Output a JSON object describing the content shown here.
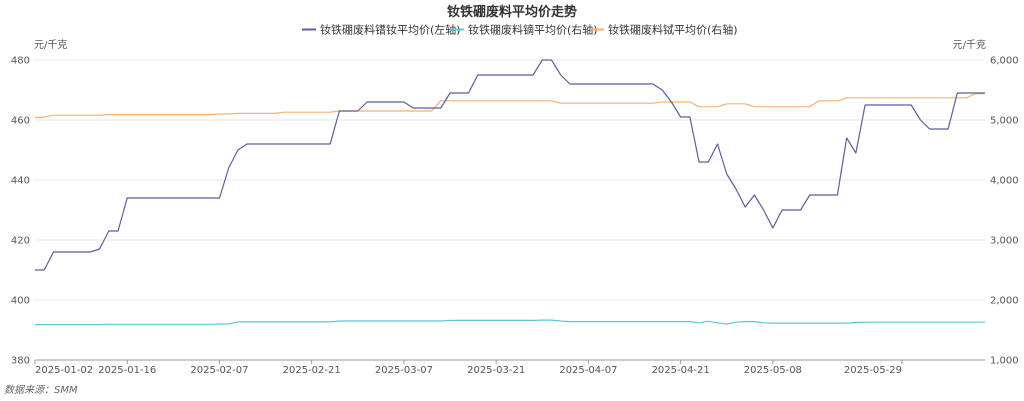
{
  "chart_data": {
    "type": "line",
    "title": "钕铁硼废料平均价走势",
    "source": "数据来源：SMM",
    "left_unit": "元/千克",
    "right_unit": "元/千克",
    "left_axis": {
      "min": 380,
      "max": 480,
      "ticks": [
        "380",
        "400",
        "420",
        "440",
        "460",
        "480"
      ]
    },
    "right_axis": {
      "min": 1000,
      "max": 6000,
      "ticks": [
        "1,000",
        "2,000",
        "3,000",
        "4,000",
        "5,000",
        "6,000"
      ]
    },
    "x_labels": [
      "2025-01-02",
      "2025-01-16",
      "2025-02-07",
      "2025-02-21",
      "2025-03-07",
      "2025-03-21",
      "2025-04-07",
      "2025-04-21",
      "2025-05-08",
      "2025-05-29"
    ],
    "x_label_index": [
      0,
      10,
      20,
      30,
      40,
      50,
      60,
      70,
      80,
      94
    ],
    "grid": true,
    "legend_position": "top-center",
    "series": [
      {
        "name": "钕铁硼废料镨钕平均价(左轴)",
        "axis": "left",
        "color": "#5b5f9b",
        "values": [
          410,
          410,
          416,
          416,
          416,
          416,
          416,
          417,
          423,
          423,
          434,
          434,
          434,
          434,
          434,
          434,
          434,
          434,
          434,
          434,
          434,
          444,
          450,
          452,
          452,
          452,
          452,
          452,
          452,
          452,
          452,
          452,
          452,
          463,
          463,
          463,
          466,
          466,
          466,
          466,
          466,
          464,
          464,
          464,
          464,
          469,
          469,
          469,
          475,
          475,
          475,
          475,
          475,
          475,
          475,
          480,
          480,
          475,
          472,
          472,
          472,
          472,
          472,
          472,
          472,
          472,
          472,
          472,
          470,
          466,
          461,
          461,
          446,
          446,
          452,
          442,
          437,
          431,
          435,
          430,
          424,
          430,
          430,
          430,
          435,
          435,
          435,
          435,
          454,
          449,
          465,
          465,
          465,
          465,
          465,
          465,
          460,
          457,
          457,
          457,
          469,
          469,
          469,
          469
        ]
      },
      {
        "name": "钕铁硼废料镝平均价(右轴)",
        "axis": "right",
        "color": "#5ec6d8",
        "values": [
          1590,
          1590,
          1590,
          1590,
          1590,
          1590,
          1590,
          1590,
          1595,
          1595,
          1595,
          1595,
          1595,
          1595,
          1595,
          1595,
          1595,
          1595,
          1595,
          1595,
          1600,
          1600,
          1635,
          1635,
          1635,
          1635,
          1635,
          1635,
          1635,
          1635,
          1635,
          1635,
          1635,
          1650,
          1650,
          1650,
          1650,
          1650,
          1650,
          1650,
          1650,
          1650,
          1650,
          1650,
          1650,
          1660,
          1660,
          1660,
          1660,
          1660,
          1660,
          1660,
          1660,
          1660,
          1660,
          1665,
          1665,
          1650,
          1640,
          1640,
          1640,
          1640,
          1640,
          1640,
          1640,
          1640,
          1640,
          1640,
          1640,
          1640,
          1640,
          1640,
          1620,
          1645,
          1620,
          1600,
          1630,
          1640,
          1640,
          1620,
          1615,
          1615,
          1615,
          1615,
          1615,
          1615,
          1615,
          1615,
          1615,
          1625,
          1630,
          1630,
          1630,
          1630,
          1630,
          1630,
          1630,
          1630,
          1630,
          1630,
          1630,
          1630,
          1630,
          1630
        ]
      },
      {
        "name": "钕铁硼废料铽平均价(右轴)",
        "axis": "right",
        "color": "#f5b06b",
        "values": [
          5040,
          5050,
          5080,
          5080,
          5080,
          5080,
          5080,
          5080,
          5090,
          5090,
          5090,
          5090,
          5090,
          5090,
          5090,
          5090,
          5090,
          5090,
          5090,
          5090,
          5100,
          5100,
          5110,
          5110,
          5110,
          5110,
          5110,
          5130,
          5130,
          5130,
          5130,
          5130,
          5130,
          5150,
          5150,
          5150,
          5150,
          5150,
          5150,
          5150,
          5150,
          5150,
          5150,
          5150,
          5320,
          5320,
          5320,
          5320,
          5320,
          5320,
          5320,
          5320,
          5320,
          5320,
          5320,
          5320,
          5320,
          5280,
          5280,
          5280,
          5280,
          5280,
          5280,
          5280,
          5280,
          5280,
          5280,
          5280,
          5300,
          5300,
          5300,
          5300,
          5220,
          5220,
          5220,
          5270,
          5270,
          5270,
          5220,
          5220,
          5220,
          5220,
          5220,
          5220,
          5220,
          5320,
          5320,
          5320,
          5370,
          5370,
          5370,
          5370,
          5370,
          5370,
          5370,
          5370,
          5370,
          5370,
          5370,
          5370,
          5370,
          5370,
          5440,
          5440
        ]
      }
    ]
  }
}
